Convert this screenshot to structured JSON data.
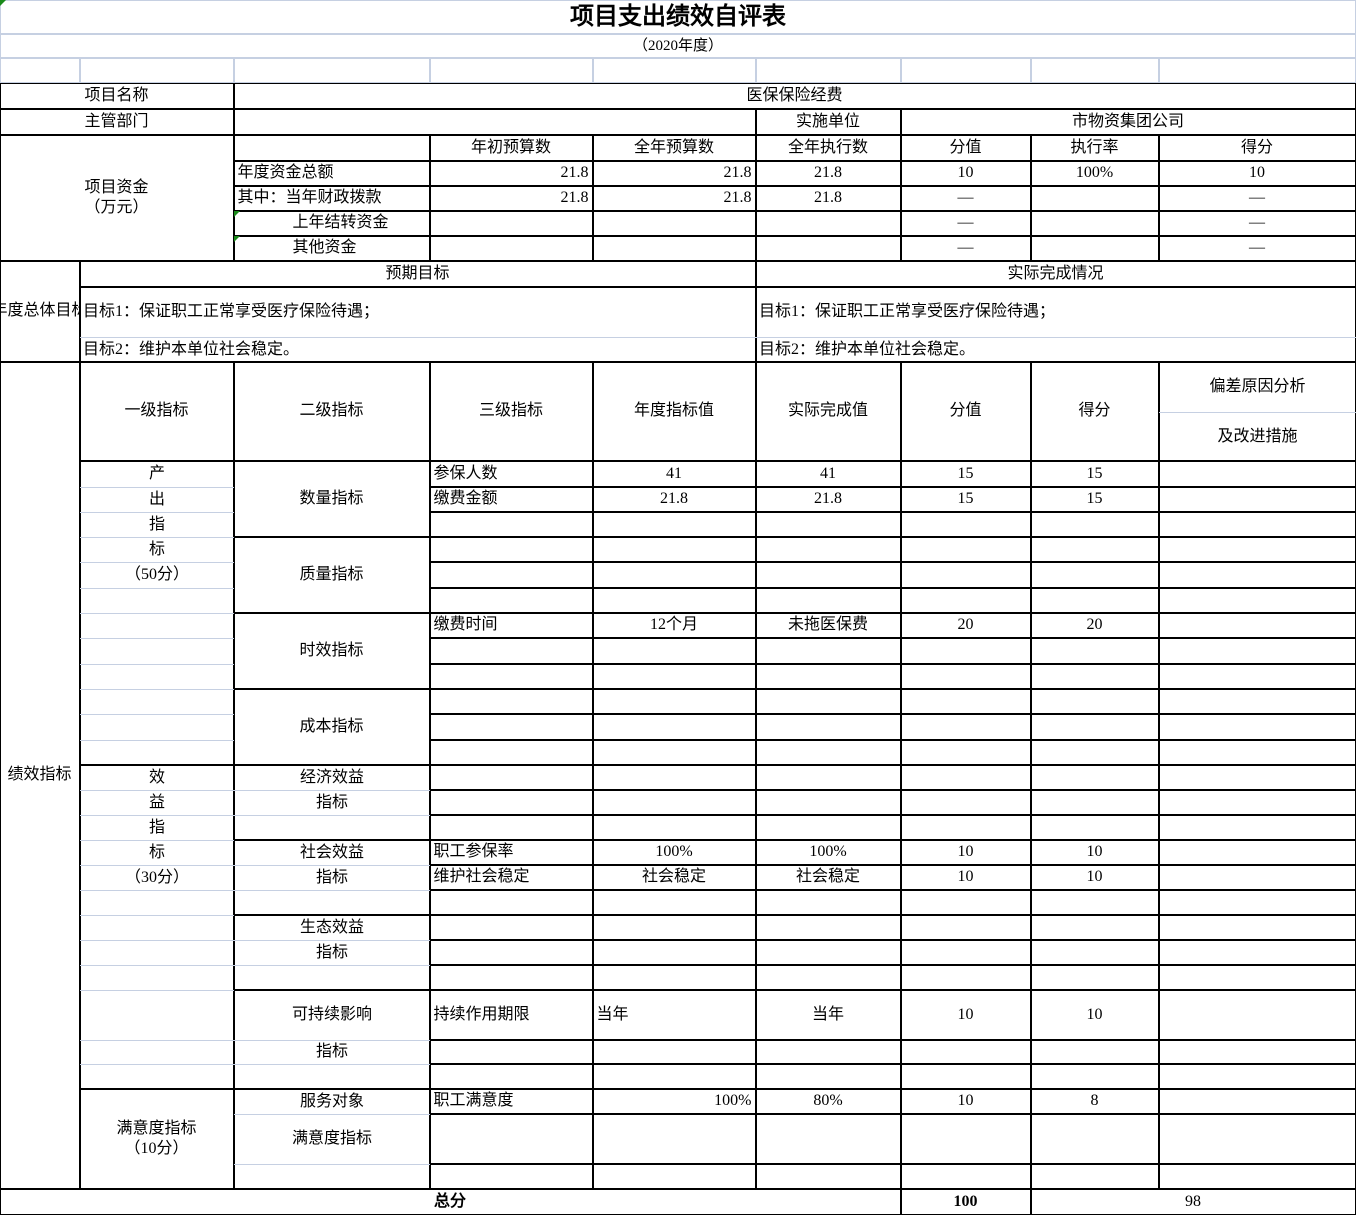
{
  "title": "项目支出绩效自评表",
  "subtitle": "（2020年度）",
  "info": {
    "name_label": "项目名称",
    "name": "医保保险经费",
    "dept_label": "主管部门",
    "dept": "",
    "impl_label": "实施单位",
    "impl": "市物资集团公司"
  },
  "funds": {
    "label_line1": "项目资金",
    "label_line2": "（万元）",
    "headers": [
      "年初预算数",
      "全年预算数",
      "全年执行数",
      "分值",
      "执行率",
      "得分"
    ],
    "rows": [
      {
        "label": "年度资金总额",
        "cells": [
          "21.8",
          "21.8",
          "21.8",
          "10",
          "100%",
          "10"
        ]
      },
      {
        "label": "其中：当年财政拨款",
        "cells": [
          "21.8",
          "21.8",
          "21.8",
          "—",
          "",
          "—"
        ]
      },
      {
        "label": "上年结转资金",
        "cells": [
          "",
          "",
          "",
          "—",
          "",
          "—"
        ]
      },
      {
        "label": "其他资金",
        "cells": [
          "",
          "",
          "",
          "—",
          "",
          "—"
        ]
      }
    ]
  },
  "goals": {
    "label": "年度总体目标",
    "expected_header": "预期目标",
    "actual_header": "实际完成情况",
    "expected": [
      "目标1：保证职工正常享受医疗保险待遇；",
      "目标2：维护本单位社会稳定。"
    ],
    "actual": [
      "目标1：保证职工正常享受医疗保险待遇；",
      "目标2：维护本单位社会稳定。"
    ]
  },
  "indicators": {
    "label": "绩效指标",
    "headers": [
      "一级指标",
      "二级指标",
      "三级指标",
      "年度指标值",
      "实际完成值",
      "分值",
      "得分"
    ],
    "note_line1": "偏差原因分析",
    "note_line2": "及改进措施",
    "output": {
      "chars": [
        "产",
        "出",
        "指",
        "标"
      ],
      "score": "（50分）"
    },
    "benefit": {
      "chars": [
        "效",
        "益",
        "指",
        "标"
      ],
      "score": "（30分）"
    },
    "satisfaction": {
      "line1": "满意度指标",
      "line2": "（10分）"
    },
    "level2": {
      "quantity": "数量指标",
      "quality": "质量指标",
      "timeliness": "时效指标",
      "cost": "成本指标",
      "economic": [
        "经济效益",
        "指标"
      ],
      "social": [
        "社会效益",
        "指标"
      ],
      "ecological": [
        "生态效益",
        "指标"
      ],
      "sustainable": [
        "可持续影响",
        "指标"
      ],
      "service": "服务对象",
      "satisfaction": "满意度指标"
    },
    "rows": [
      {
        "name": "参保人数",
        "target": "41",
        "actual": "41",
        "weight": "15",
        "score": "15"
      },
      {
        "name": "缴费金额",
        "target": "21.8",
        "actual": "21.8",
        "weight": "15",
        "score": "15"
      },
      {
        "name": "缴费时间",
        "target": "12个月",
        "actual": "未拖医保费",
        "weight": "20",
        "score": "20"
      },
      {
        "name": "职工参保率",
        "target": "100%",
        "actual": "100%",
        "weight": "10",
        "score": "10"
      },
      {
        "name": "维护社会稳定",
        "target": "社会稳定",
        "actual": "社会稳定",
        "weight": "10",
        "score": "10"
      },
      {
        "name": "持续作用期限",
        "target": "当年",
        "actual": "当年",
        "weight": "10",
        "score": "10"
      },
      {
        "name": "职工满意度",
        "target": "100%",
        "actual": "80%",
        "weight": "10",
        "score": "8"
      }
    ]
  },
  "total": {
    "label": "总分",
    "weight": "100",
    "score": "98"
  }
}
